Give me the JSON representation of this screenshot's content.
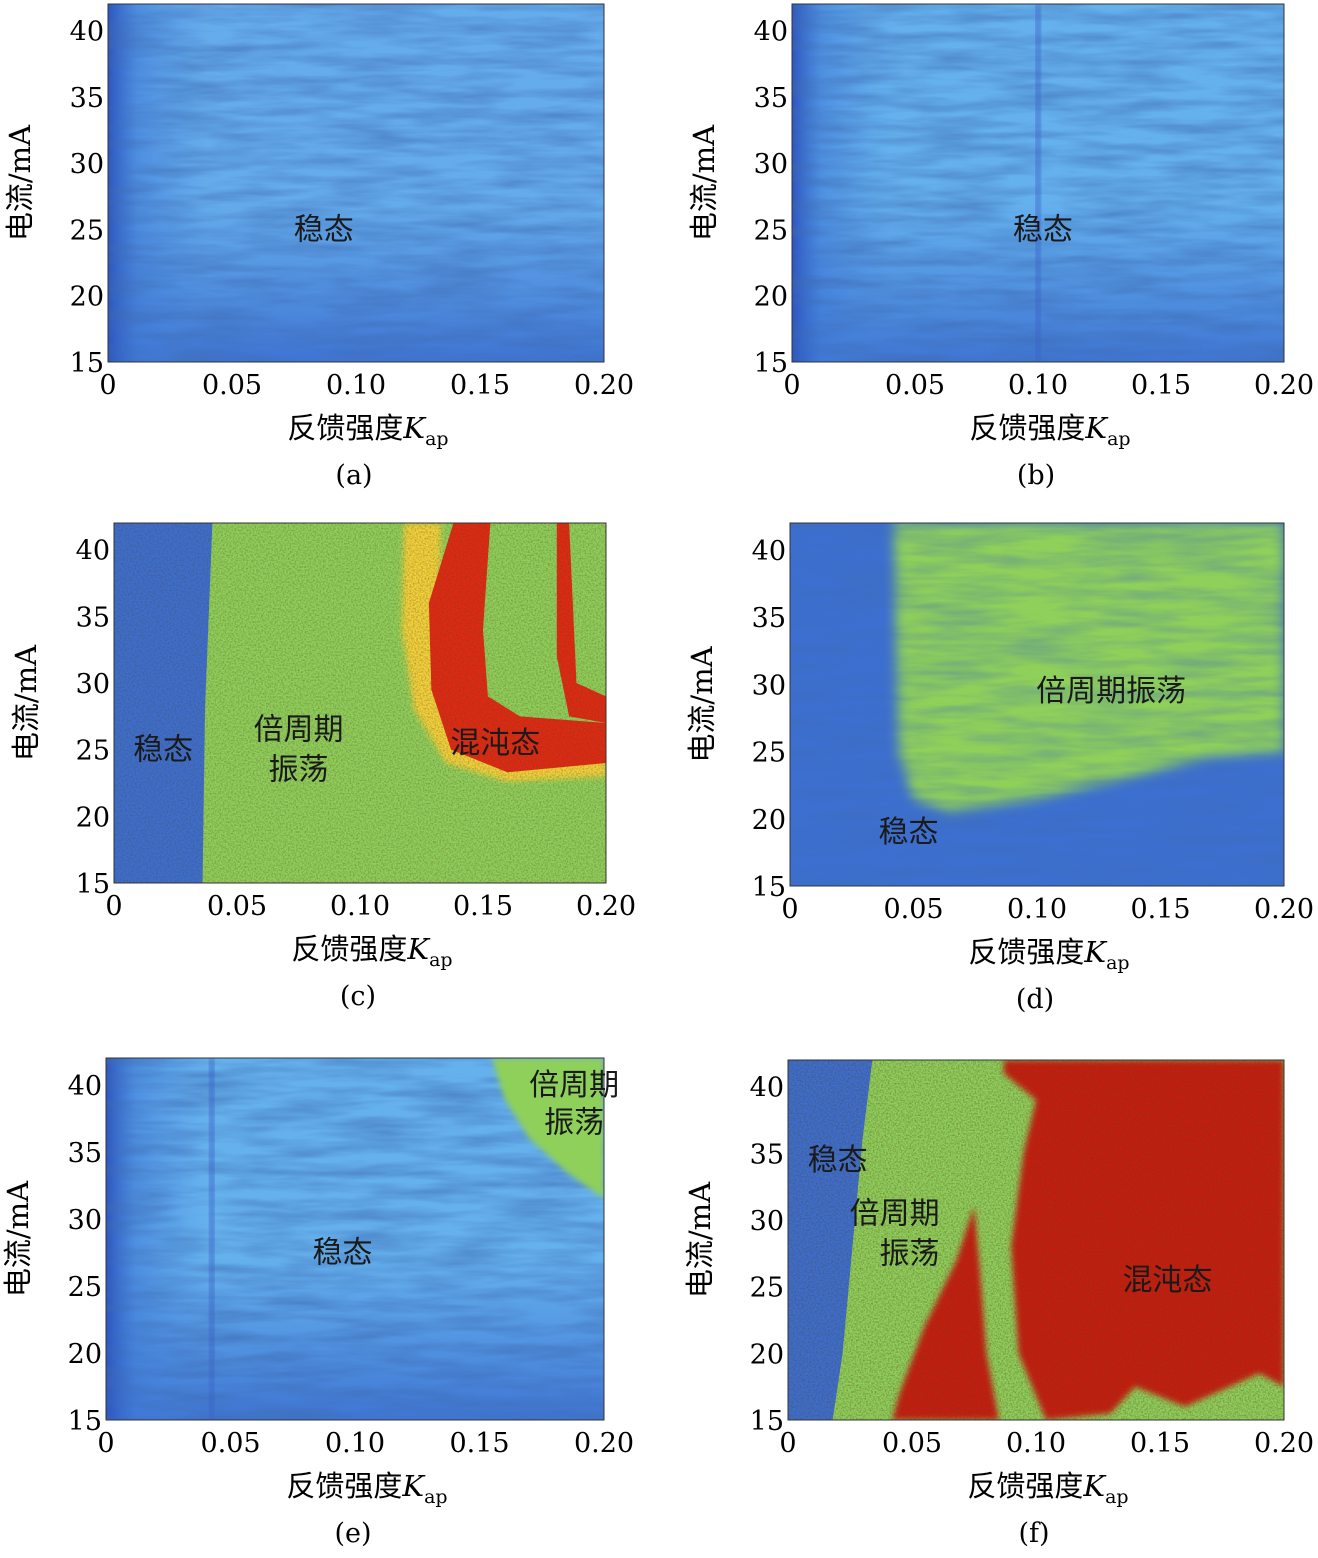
{
  "chart_data": [
    {
      "type": "heatmap",
      "panel": "(a)",
      "xlabel_main": "反馈强度",
      "xlabel_symbol": "K",
      "xlabel_sub": "ap",
      "ylabel": "电流/mA",
      "xlim": [
        0,
        0.2
      ],
      "ylim": [
        15,
        42
      ],
      "xticks": [
        "0",
        "0.05",
        "0.10",
        "0.15",
        "0.20"
      ],
      "yticks": [
        "15",
        "20",
        "25",
        "30",
        "35",
        "40"
      ],
      "regions": [
        {
          "name": "stable",
          "color": "#5aa0e6"
        }
      ],
      "annotations": [
        {
          "text": "稳态",
          "x": 0.087,
          "y": 25
        }
      ]
    },
    {
      "type": "heatmap",
      "panel": "(b)",
      "xlabel_main": "反馈强度",
      "xlabel_symbol": "K",
      "xlabel_sub": "ap",
      "ylabel": "电流/mA",
      "xlim": [
        0,
        0.2
      ],
      "ylim": [
        15,
        42
      ],
      "xticks": [
        "0",
        "0.05",
        "0.10",
        "0.15",
        "0.20"
      ],
      "yticks": [
        "15",
        "20",
        "25",
        "30",
        "35",
        "40"
      ],
      "regions": [
        {
          "name": "stable",
          "color": "#5aa8ea"
        }
      ],
      "annotations": [
        {
          "text": "稳态",
          "x": 0.102,
          "y": 25
        }
      ]
    },
    {
      "type": "heatmap",
      "panel": "(c)",
      "xlabel_main": "反馈强度",
      "xlabel_symbol": "K",
      "xlabel_sub": "ap",
      "ylabel": "电流/mA",
      "xlim": [
        0,
        0.2
      ],
      "ylim": [
        15,
        42
      ],
      "xticks": [
        "0",
        "0.05",
        "0.10",
        "0.15",
        "0.20"
      ],
      "yticks": [
        "15",
        "20",
        "25",
        "30",
        "35",
        "40"
      ],
      "regions": [
        {
          "name": "stable",
          "color": "#3c6fd0"
        },
        {
          "name": "period-doubling",
          "color": "#8fd05a"
        },
        {
          "name": "chaos",
          "color": "#e02a12"
        }
      ],
      "annotations": [
        {
          "text": "稳态",
          "x": 0.02,
          "y": 25
        },
        {
          "text": "倍周期",
          "x": 0.075,
          "y": 26.5
        },
        {
          "text": "振荡",
          "x": 0.075,
          "y": 23.5
        },
        {
          "text": "混沌态",
          "x": 0.155,
          "y": 25.5
        }
      ]
    },
    {
      "type": "heatmap",
      "panel": "(d)",
      "xlabel_main": "反馈强度",
      "xlabel_symbol": "K",
      "xlabel_sub": "ap",
      "ylabel": "电流/mA",
      "xlim": [
        0,
        0.2
      ],
      "ylim": [
        15,
        42
      ],
      "xticks": [
        "0",
        "0.05",
        "0.10",
        "0.15",
        "0.20"
      ],
      "yticks": [
        "15",
        "20",
        "25",
        "30",
        "35",
        "40"
      ],
      "regions": [
        {
          "name": "stable",
          "color": "#3c6fd0"
        },
        {
          "name": "period-doubling",
          "color": "#8fd05a"
        }
      ],
      "annotations": [
        {
          "text": "倍周期振荡",
          "x": 0.13,
          "y": 29.5
        },
        {
          "text": "稳态",
          "x": 0.048,
          "y": 19
        }
      ]
    },
    {
      "type": "heatmap",
      "panel": "(e)",
      "xlabel_main": "反馈强度",
      "xlabel_symbol": "K",
      "xlabel_sub": "ap",
      "ylabel": "电流/mA",
      "xlim": [
        0,
        0.2
      ],
      "ylim": [
        15,
        42
      ],
      "xticks": [
        "0",
        "0.05",
        "0.10",
        "0.15",
        "0.20"
      ],
      "yticks": [
        "15",
        "20",
        "25",
        "30",
        "35",
        "40"
      ],
      "regions": [
        {
          "name": "stable",
          "color": "#5aa8ea"
        },
        {
          "name": "period-doubling",
          "color": "#8fd05a"
        }
      ],
      "annotations": [
        {
          "text": "倍周期",
          "x": 0.188,
          "y": 40
        },
        {
          "text": "振荡",
          "x": 0.188,
          "y": 37.2
        },
        {
          "text": "稳态",
          "x": 0.095,
          "y": 27.5
        }
      ]
    },
    {
      "type": "heatmap",
      "panel": "(f)",
      "xlabel_main": "反馈强度",
      "xlabel_symbol": "K",
      "xlabel_sub": "ap",
      "ylabel": "电流/mA",
      "xlim": [
        0,
        0.2
      ],
      "ylim": [
        15,
        42
      ],
      "xticks": [
        "0",
        "0.05",
        "0.10",
        "0.15",
        "0.20"
      ],
      "yticks": [
        "15",
        "20",
        "25",
        "30",
        "35",
        "40"
      ],
      "regions": [
        {
          "name": "stable",
          "color": "#3c6fd0"
        },
        {
          "name": "period-doubling",
          "color": "#8fd05a"
        },
        {
          "name": "chaos",
          "color": "#c81e0c"
        }
      ],
      "annotations": [
        {
          "text": "稳态",
          "x": 0.02,
          "y": 34.5
        },
        {
          "text": "倍周期",
          "x": 0.043,
          "y": 30.5
        },
        {
          "text": "振荡",
          "x": 0.049,
          "y": 27.5
        },
        {
          "text": "混沌态",
          "x": 0.153,
          "y": 25.5
        }
      ]
    }
  ]
}
